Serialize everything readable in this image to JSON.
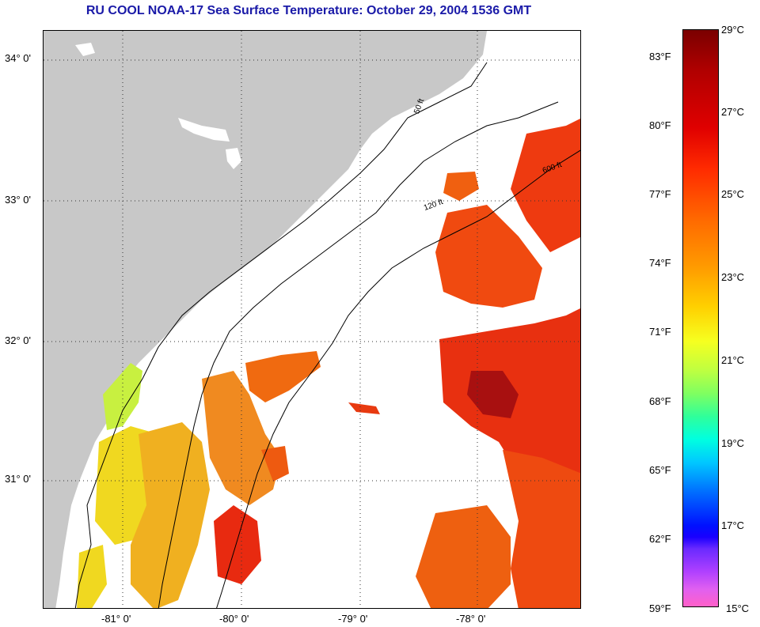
{
  "title": "RU COOL  NOAA-17  Sea Surface Temperature:  October 29, 2004 1536 GMT",
  "map": {
    "lat_labels": [
      "34° 0'",
      "33° 0'",
      "32° 0'",
      "31° 0'"
    ],
    "lon_labels": [
      "-81° 0'",
      "-80° 0'",
      "-79° 0'",
      "-78° 0'"
    ],
    "contour_labels": [
      "50 ft",
      "120 ft",
      "600 ft"
    ],
    "land_color": "#c8c8c8",
    "cloud_color": "#ffffff"
  },
  "colorbar": {
    "fahrenheit": [
      "83°F",
      "80°F",
      "77°F",
      "74°F",
      "71°F",
      "68°F",
      "65°F",
      "62°F",
      "59°F"
    ],
    "celsius": [
      "29°C",
      "27°C",
      "25°C",
      "23°C",
      "21°C",
      "19°C",
      "17°C",
      "15°C"
    ]
  }
}
